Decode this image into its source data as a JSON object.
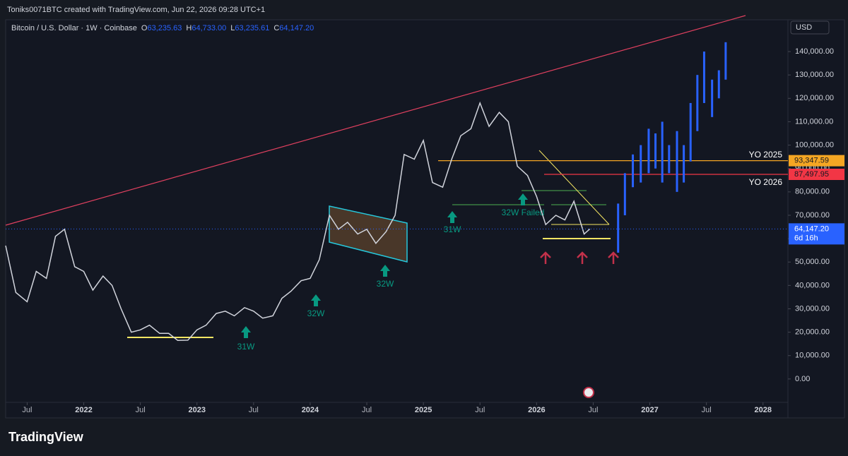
{
  "header": {
    "credit": "Toniks0071BTC created with TradingView.com, Jun 22, 2026 09:28 UTC+1",
    "brand": "TradingView"
  },
  "chart_data": {
    "type": "line",
    "title": "Bitcoin / U.S. Dollar · 1W · Coinbase",
    "ohlc": [
      {
        "key": "O",
        "value": "63,235.63"
      },
      {
        "key": "H",
        "value": "64,733.00"
      },
      {
        "key": "L",
        "value": "63,235.61"
      },
      {
        "key": "C",
        "value": "64,147.20"
      }
    ],
    "currency": "USD",
    "color": "#d1d4dc",
    "x": [
      2021.31,
      2021.4,
      2021.5,
      2021.58,
      2021.67,
      2021.75,
      2021.83,
      2021.92,
      2022.0,
      2022.08,
      2022.17,
      2022.25,
      2022.33,
      2022.42,
      2022.5,
      2022.58,
      2022.67,
      2022.75,
      2022.83,
      2022.92,
      2023.0,
      2023.08,
      2023.17,
      2023.25,
      2023.33,
      2023.42,
      2023.5,
      2023.58,
      2023.67,
      2023.75,
      2023.83,
      2023.92,
      2024.0,
      2024.08,
      2024.17,
      2024.25,
      2024.33,
      2024.42,
      2024.5,
      2024.58,
      2024.67,
      2024.75,
      2024.83,
      2024.92,
      2025.0,
      2025.08,
      2025.17,
      2025.25,
      2025.33,
      2025.42,
      2025.5,
      2025.58,
      2025.67,
      2025.75,
      2025.83,
      2025.92,
      2026.0,
      2026.08,
      2026.17,
      2026.25,
      2026.33,
      2026.42,
      2026.47
    ],
    "values": [
      57000,
      37000,
      33000,
      46000,
      43000,
      61000,
      64000,
      48000,
      46000,
      38000,
      44000,
      40000,
      30000,
      20000,
      21000,
      23000,
      19500,
      19500,
      16500,
      16600,
      21000,
      23000,
      28000,
      29000,
      27000,
      30500,
      29000,
      26000,
      27000,
      34500,
      37500,
      42000,
      43000,
      51000,
      70000,
      64000,
      67000,
      62000,
      64000,
      58000,
      63000,
      70000,
      96000,
      94000,
      102000,
      84000,
      82000,
      94000,
      104000,
      107000,
      118000,
      108000,
      114000,
      110000,
      91000,
      87000,
      78000,
      66000,
      70000,
      68000,
      76000,
      62000,
      64147.2
    ],
    "projection": {
      "color": "#2962ff",
      "x": [
        2026.72,
        2026.78,
        2026.85,
        2026.92,
        2026.99,
        2027.05,
        2027.11,
        2027.17,
        2027.24,
        2027.3,
        2027.36,
        2027.42,
        2027.48,
        2027.55,
        2027.61,
        2027.67
      ],
      "low": [
        54000,
        70000,
        82000,
        84000,
        88000,
        90000,
        84000,
        88000,
        80000,
        84000,
        93000,
        106000,
        118000,
        112000,
        120000,
        128000
      ],
      "high": [
        75000,
        88000,
        96000,
        100000,
        107000,
        105000,
        110000,
        100000,
        106000,
        100000,
        118000,
        130000,
        140000,
        128000,
        132000,
        144000
      ]
    },
    "levels": [
      {
        "name": "YO 2025",
        "value": 93347.59,
        "value_label": "93,347.59",
        "color": "#f5a623"
      },
      {
        "name": "YO 2026",
        "value": 87497.95,
        "value_label": "87,497.95",
        "color": "#f23645"
      }
    ],
    "last": {
      "value": 64147.2,
      "value_label": "64,147.20",
      "countdown": "6d 16h",
      "color": "#2962ff"
    },
    "annotations": [
      "31W",
      "32W",
      "32W",
      "31W",
      "32W Failed"
    ],
    "xlim": [
      2021.31,
      2028.22
    ],
    "ylim": [
      -10000,
      153600
    ],
    "xticks": [
      {
        "value": 2021.5,
        "label": "Jul"
      },
      2022,
      {
        "value": 2022.5,
        "label": "Jul"
      },
      2023,
      {
        "value": 2023.5,
        "label": "Jul"
      },
      2024,
      {
        "value": 2024.5,
        "label": "Jul"
      },
      2025,
      {
        "value": 2025.5,
        "label": "Jul"
      },
      2026,
      {
        "value": 2026.5,
        "label": "Jul"
      },
      2027,
      {
        "value": 2027.5,
        "label": "Jul"
      },
      2028
    ],
    "yticks": [
      {
        "value": 0,
        "label": "0.00"
      },
      {
        "value": 10000,
        "label": "10,000.00"
      },
      {
        "value": 20000,
        "label": "20,000.00"
      },
      {
        "value": 30000,
        "label": "30,000.00"
      },
      {
        "value": 40000,
        "label": "40,000.00"
      },
      {
        "value": 50000,
        "label": "50,000.00"
      },
      {
        "value": 60000,
        "label": "60,000.00"
      },
      {
        "value": 70000,
        "label": "70,000.00"
      },
      {
        "value": 80000,
        "label": "80,000.00"
      },
      {
        "value": 90000,
        "label": "90,000.00"
      },
      {
        "value": 100000,
        "label": "100,000.00"
      },
      {
        "value": 110000,
        "label": "110,000.00"
      },
      {
        "value": 120000,
        "label": "120,000.00"
      },
      {
        "value": 130000,
        "label": "130,000.00"
      },
      {
        "value": 140000,
        "label": "140,000.00"
      }
    ],
    "grid": false
  }
}
